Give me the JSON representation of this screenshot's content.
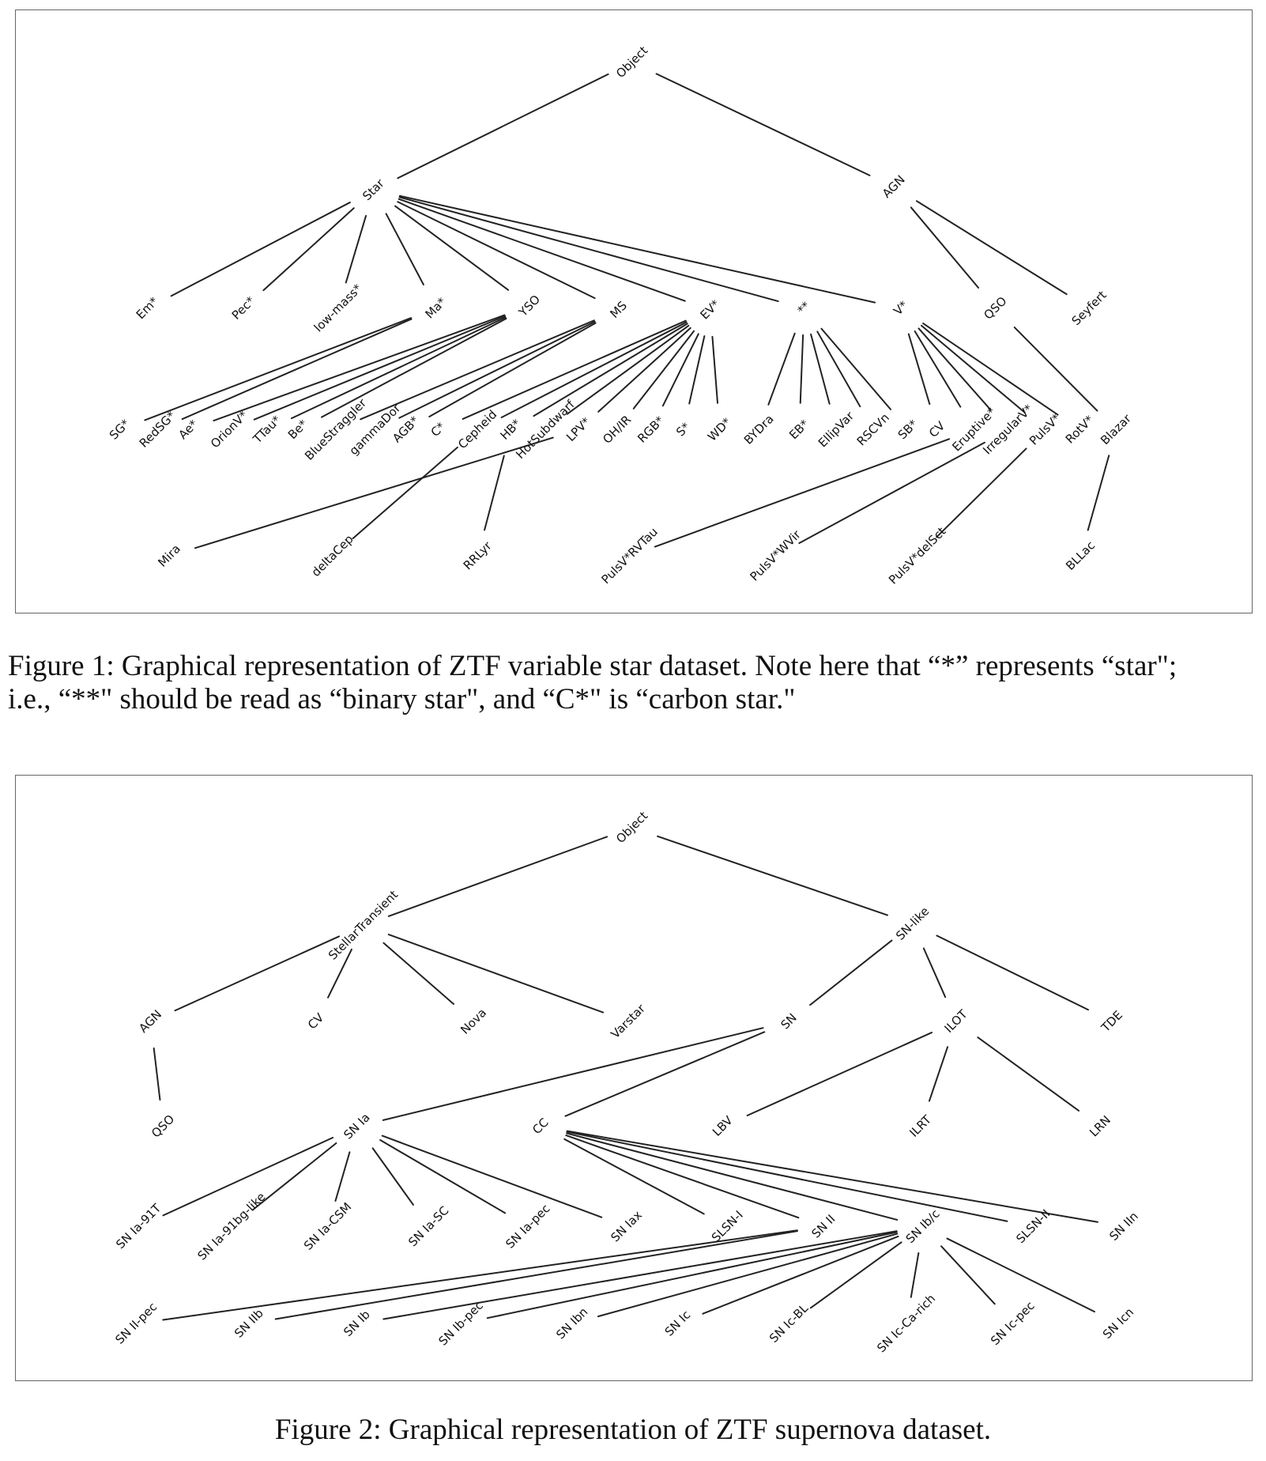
{
  "figure1": {
    "caption_line1": "Figure 1: Graphical representation of ZTF variable star dataset. Note here that “*” represents “star\";",
    "caption_line2": "i.e., “**\" should be read as “binary star\", and “C*\" is “carbon star.\"",
    "root": "Object",
    "level1": [
      "Star",
      "AGN"
    ],
    "level2": [
      "Em*",
      "Pec*",
      "low-mass*",
      "Ma*",
      "YSO",
      "MS",
      "EV*",
      "**",
      "V*",
      "QSO",
      "Seyfert"
    ],
    "level3": [
      "SG*",
      "RedSG*",
      "Ae*",
      "OrionV*",
      "TTau*",
      "Be*",
      "BlueStraggler",
      "gammaDor",
      "AGB*",
      "C*",
      "Cepheid",
      "HB*",
      "HotSubdwarf",
      "LPV*",
      "OH/IR",
      "RGB*",
      "S*",
      "WD*",
      "BYDra",
      "EB*",
      "EllipVar",
      "RSCVn",
      "SB*",
      "CV",
      "Eruptive*",
      "IrregularV*",
      "PulsV*",
      "RotV*",
      "Blazar"
    ],
    "level4": [
      "Mira",
      "deltaCep",
      "RRLyr",
      "PulsV*RVTau",
      "PulsV*WVir",
      "PulsV*delSct",
      "BLLac"
    ]
  },
  "figure2": {
    "caption": "Figure 2: Graphical representation of ZTF supernova dataset.",
    "root": "Object",
    "level1": [
      "StellarTransient",
      "SN-like"
    ],
    "level2": [
      "AGN",
      "CV",
      "Nova",
      "Varstar",
      "SN",
      "ILOT",
      "TDE"
    ],
    "level3": [
      "QSO",
      "SN Ia",
      "CC",
      "LBV",
      "ILRT",
      "LRN"
    ],
    "level4": [
      "SN Ia-91T",
      "SN Ia-91bg-like",
      "SN Ia-CSM",
      "SN Ia-SC",
      "SN Ia-pec",
      "SN Iax",
      "SLSN-I",
      "SN II",
      "SN Ib/c",
      "SLSN-II",
      "SN IIn"
    ],
    "level5": [
      "SN II-pec",
      "SN IIb",
      "SN Ib",
      "SN Ib-pec",
      "SN Ibn",
      "SN Ic",
      "SN Ic-BL",
      "SN Ic-Ca-rich",
      "SN Ic-pec",
      "SN Icn"
    ]
  }
}
